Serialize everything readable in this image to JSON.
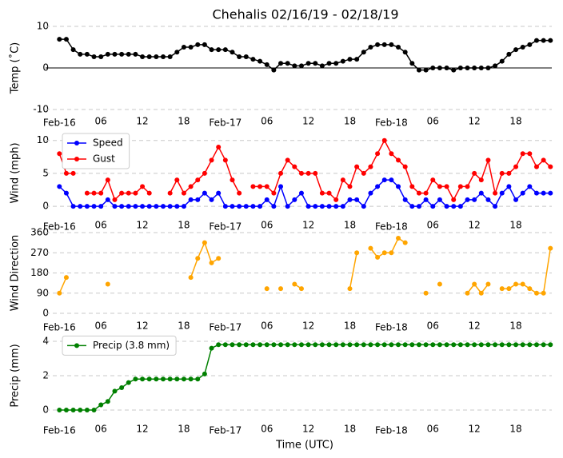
{
  "chart_data": [
    {
      "type": "line",
      "title": "Chehalis 02/16/19 - 02/18/19",
      "ylabel": "Temp (˚C)",
      "x": [
        0,
        1,
        2,
        3,
        4,
        5,
        6,
        7,
        8,
        9,
        10,
        11,
        12,
        13,
        14,
        15,
        16,
        17,
        18,
        19,
        20,
        21,
        22,
        23,
        24,
        25,
        26,
        27,
        28,
        29,
        30,
        31,
        32,
        33,
        34,
        35,
        36,
        37,
        38,
        39,
        40,
        41,
        42,
        43,
        44,
        45,
        46,
        47,
        48,
        49,
        50,
        51,
        52,
        53,
        54,
        55,
        56,
        57,
        58,
        59,
        60,
        61,
        62,
        63,
        64,
        65,
        66,
        67,
        68,
        69,
        70,
        71
      ],
      "xlim": [
        -2,
        71.2
      ],
      "xticks": [
        {
          "value": 0,
          "label": "Feb-16"
        },
        {
          "value": 6,
          "label": "06"
        },
        {
          "value": 12,
          "label": "12"
        },
        {
          "value": 18,
          "label": "18"
        },
        {
          "value": 24,
          "label": "Feb-17"
        },
        {
          "value": 30,
          "label": "06"
        },
        {
          "value": 36,
          "label": "12"
        },
        {
          "value": 42,
          "label": "18"
        },
        {
          "value": 48,
          "label": "Feb-18"
        },
        {
          "value": 54,
          "label": "06"
        },
        {
          "value": 60,
          "label": "12"
        },
        {
          "value": 66,
          "label": "18"
        }
      ],
      "ylim": [
        -10,
        10
      ],
      "yticks": [
        -10,
        0,
        10
      ],
      "grid": true,
      "zero_line": true,
      "series": [
        {
          "color": "#000000",
          "values": [
            6.9,
            6.9,
            4.4,
            3.3,
            3.3,
            2.7,
            2.7,
            3.3,
            3.3,
            3.3,
            3.3,
            3.3,
            2.7,
            2.7,
            2.7,
            2.7,
            2.7,
            3.8,
            5,
            5,
            5.6,
            5.6,
            4.4,
            4.4,
            4.4,
            3.8,
            2.7,
            2.7,
            2.1,
            1.6,
            0.8,
            -0.5,
            1.1,
            1.1,
            0.5,
            0.5,
            1.1,
            1.1,
            0.5,
            1.1,
            1.1,
            1.6,
            2.1,
            2.1,
            3.8,
            5,
            5.6,
            5.6,
            5.6,
            5,
            3.8,
            1.1,
            -0.5,
            -0.5,
            0,
            0,
            0,
            -0.5,
            0,
            0,
            0,
            0,
            0,
            0.5,
            1.6,
            3.3,
            4.4,
            5,
            5.6,
            6.6,
            6.6,
            6.6
          ]
        }
      ]
    },
    {
      "type": "line",
      "ylabel": "Wind (mph)",
      "ylim": [
        -1.2,
        11.3
      ],
      "yticks": [
        0,
        5,
        10
      ],
      "grid": true,
      "legend": "upper left",
      "series": [
        {
          "name": "Speed",
          "color": "#0000ff",
          "values": [
            3,
            2,
            0,
            0,
            0,
            0,
            0,
            1,
            0,
            0,
            0,
            0,
            0,
            0,
            0,
            0,
            0,
            0,
            0,
            1,
            1,
            2,
            1,
            2,
            0,
            0,
            0,
            0,
            0,
            0,
            1,
            0,
            3,
            0,
            1,
            2,
            0,
            0,
            0,
            0,
            0,
            0,
            1,
            1,
            0,
            2,
            3,
            4,
            4,
            3,
            1,
            0,
            0,
            1,
            0,
            1,
            0,
            0,
            0,
            1,
            1,
            2,
            1,
            0,
            2,
            3,
            1,
            2,
            3,
            2,
            2,
            2
          ]
        },
        {
          "name": "Gust",
          "color": "#ff0000",
          "values": [
            8,
            5,
            5,
            null,
            2,
            2,
            2,
            4,
            1,
            2,
            2,
            2,
            3,
            2,
            null,
            null,
            2,
            4,
            2,
            3,
            4,
            5,
            7,
            9,
            7,
            4,
            2,
            null,
            3,
            3,
            3,
            2,
            5,
            7,
            6,
            5,
            5,
            5,
            2,
            2,
            1,
            4,
            3,
            6,
            5,
            6,
            8,
            10,
            8,
            7,
            6,
            3,
            2,
            2,
            4,
            3,
            3,
            1,
            3,
            3,
            5,
            4,
            7,
            2,
            5,
            5,
            6,
            8,
            8,
            6,
            7,
            6
          ]
        }
      ]
    },
    {
      "type": "line",
      "ylabel": "Wind Direction",
      "ylim": [
        0,
        360
      ],
      "yticks": [
        0,
        90,
        180,
        270,
        360
      ],
      "grid": true,
      "series": [
        {
          "color": "#ffa500",
          "values": [
            90,
            160,
            null,
            null,
            null,
            null,
            null,
            130,
            null,
            null,
            null,
            null,
            null,
            null,
            null,
            null,
            null,
            null,
            null,
            160,
            245,
            315,
            225,
            245,
            null,
            null,
            null,
            null,
            null,
            null,
            110,
            null,
            110,
            null,
            130,
            110,
            null,
            null,
            null,
            null,
            null,
            null,
            110,
            270,
            null,
            290,
            250,
            270,
            270,
            335,
            315,
            null,
            null,
            90,
            null,
            130,
            null,
            null,
            null,
            90,
            130,
            90,
            130,
            null,
            110,
            110,
            130,
            130,
            110,
            90,
            90,
            290
          ]
        }
      ]
    },
    {
      "type": "line",
      "ylabel": "Precip (mm)",
      "xlabel": "Time (UTC)",
      "ylim": [
        -0.4,
        4.4
      ],
      "yticks": [
        0,
        2,
        4
      ],
      "grid": true,
      "legend": "upper left",
      "series": [
        {
          "name": "Precip (3.8 mm)",
          "color": "#008000",
          "values": [
            0,
            0,
            0,
            0,
            0,
            0,
            0.3,
            0.5,
            1.1,
            1.3,
            1.6,
            1.8,
            1.8,
            1.8,
            1.8,
            1.8,
            1.8,
            1.8,
            1.8,
            1.8,
            1.8,
            2.1,
            3.6,
            3.8,
            3.8,
            3.8,
            3.8,
            3.8,
            3.8,
            3.8,
            3.8,
            3.8,
            3.8,
            3.8,
            3.8,
            3.8,
            3.8,
            3.8,
            3.8,
            3.8,
            3.8,
            3.8,
            3.8,
            3.8,
            3.8,
            3.8,
            3.8,
            3.8,
            3.8,
            3.8,
            3.8,
            3.8,
            3.8,
            3.8,
            3.8,
            3.8,
            3.8,
            3.8,
            3.8,
            3.8,
            3.8,
            3.8,
            3.8,
            3.8,
            3.8,
            3.8,
            3.8,
            3.8,
            3.8,
            3.8,
            3.8,
            3.8
          ]
        }
      ]
    }
  ]
}
